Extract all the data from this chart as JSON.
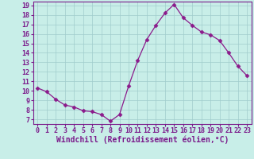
{
  "x": [
    0,
    1,
    2,
    3,
    4,
    5,
    6,
    7,
    8,
    9,
    10,
    11,
    12,
    13,
    14,
    15,
    16,
    17,
    18,
    19,
    20,
    21,
    22,
    23
  ],
  "y": [
    10.3,
    9.9,
    9.1,
    8.5,
    8.3,
    7.9,
    7.8,
    7.5,
    6.8,
    7.5,
    10.5,
    13.2,
    15.4,
    16.9,
    18.2,
    19.1,
    17.7,
    16.9,
    16.2,
    15.9,
    15.3,
    14.0,
    12.6,
    11.6
  ],
  "line_color": "#8b1a8b",
  "marker": "D",
  "marker_size": 2.5,
  "bg_color": "#c8eee8",
  "grid_color": "#a0cccc",
  "xlabel": "Windchill (Refroidissement éolien,°C)",
  "ylim_min": 6.5,
  "ylim_max": 19.4,
  "xlim_min": -0.5,
  "xlim_max": 23.5,
  "yticks": [
    7,
    8,
    9,
    10,
    11,
    12,
    13,
    14,
    15,
    16,
    17,
    18,
    19
  ],
  "xticks": [
    0,
    1,
    2,
    3,
    4,
    5,
    6,
    7,
    8,
    9,
    10,
    11,
    12,
    13,
    14,
    15,
    16,
    17,
    18,
    19,
    20,
    21,
    22,
    23
  ],
  "tick_label_fontsize": 6,
  "xlabel_fontsize": 7,
  "axis_color": "#7b1a8b"
}
